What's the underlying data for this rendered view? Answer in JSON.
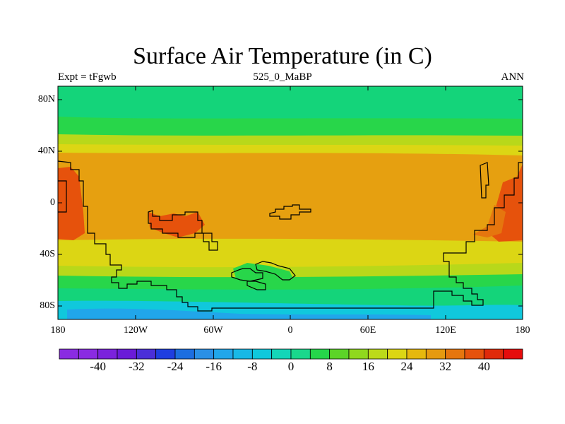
{
  "title": "Surface Air Temperature (in C)",
  "subtitle_left": "Expt = tFgwb",
  "subtitle_center": "525_0_MaBP",
  "subtitle_right": "ANN",
  "lat_labels": [
    "80N",
    "40N",
    "0",
    "40S",
    "80S"
  ],
  "lon_labels": [
    "180",
    "120W",
    "60W",
    "0",
    "60E",
    "120E",
    "180"
  ],
  "colorbar": {
    "colors": [
      "#8a2be2",
      "#8a2be2",
      "#7b22dc",
      "#6a1bd8",
      "#4b2fd9",
      "#1f3ee0",
      "#1c6ee0",
      "#2a90e6",
      "#21a6ea",
      "#18b8e6",
      "#10c8dc",
      "#14d6b8",
      "#1ad88c",
      "#25d64a",
      "#5cd428",
      "#90d81e",
      "#bcda1a",
      "#dcd614",
      "#e6b80e",
      "#e69a10",
      "#e6760e",
      "#e6520c",
      "#e02a0a",
      "#e60c0c"
    ],
    "labels": [
      "-40",
      "-32",
      "-24",
      "-16",
      "-8",
      "0",
      "8",
      "16",
      "24",
      "32",
      "40"
    ]
  },
  "map_colors": {
    "polar_green": "#14d47a",
    "mid_green": "#28d64a",
    "yellow_green": "#b8d81a",
    "yellow": "#dcd614",
    "orange": "#e6a010",
    "dark_orange": "#e6760e",
    "red_orange": "#e6520c",
    "cyan": "#10c8dc",
    "blue": "#21a6ea"
  }
}
